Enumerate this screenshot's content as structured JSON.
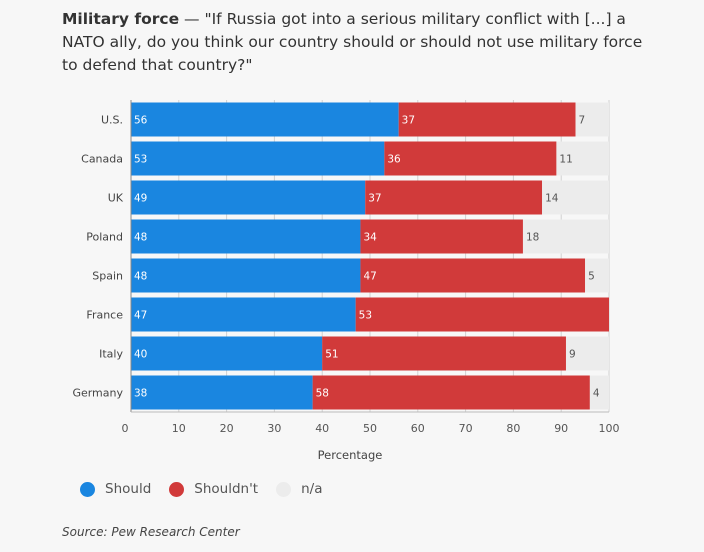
{
  "header": {
    "title_bold": "Military force",
    "title_rest": " — \"If Russia got into a serious military conflict with [...] a NATO ally, do you think our country should or should not use military force to defend that country?\""
  },
  "source": "Source: Pew Research Center",
  "chart_data": {
    "type": "bar",
    "orientation": "horizontal",
    "stacked": true,
    "categories": [
      "U.S.",
      "Canada",
      "UK",
      "Poland",
      "Spain",
      "France",
      "Italy",
      "Germany"
    ],
    "series": [
      {
        "name": "Should",
        "color": "#1a86e0",
        "values": [
          56,
          53,
          49,
          48,
          48,
          47,
          40,
          38
        ]
      },
      {
        "name": "Shouldn't",
        "color": "#d13a3a",
        "values": [
          37,
          36,
          37,
          34,
          47,
          53,
          51,
          58
        ]
      },
      {
        "name": "n/a",
        "color": "#ececec",
        "values": [
          7,
          11,
          14,
          18,
          5,
          0,
          9,
          4
        ]
      }
    ],
    "xlabel": "Percentage",
    "xlim": [
      0,
      100
    ],
    "xticks": [
      0,
      10,
      20,
      30,
      40,
      50,
      60,
      70,
      80,
      90,
      100
    ],
    "grid": true,
    "legend_position": "bottom-left"
  }
}
